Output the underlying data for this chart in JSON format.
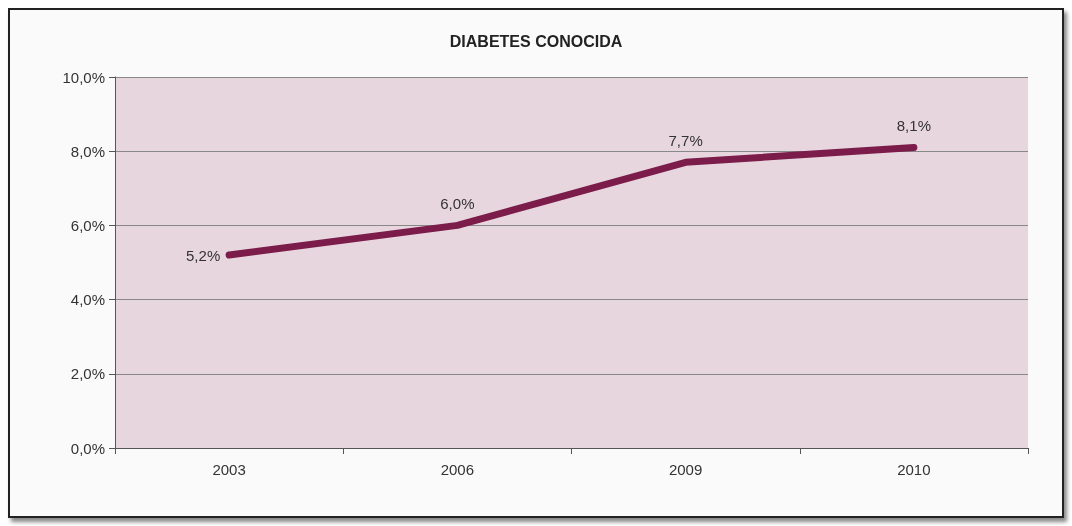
{
  "chart_data": {
    "type": "line",
    "title": "DIABETES CONOCIDA",
    "categories": [
      "2003",
      "2006",
      "2009",
      "2010"
    ],
    "series": [
      {
        "color": "#7b1c4b",
        "values": [
          5.2,
          6.0,
          7.7,
          8.1
        ],
        "value_labels": [
          "5,2%",
          "6,0%",
          "7,7%",
          "8,1%"
        ]
      }
    ],
    "ylim": [
      0,
      10
    ],
    "yticks": [
      {
        "value": 0,
        "label": "0,0%"
      },
      {
        "value": 2,
        "label": "2,0%"
      },
      {
        "value": 4,
        "label": "4,0%"
      },
      {
        "value": 6,
        "label": "6,0%"
      },
      {
        "value": 8,
        "label": "8,0%"
      },
      {
        "value": 10,
        "label": "10,0%"
      }
    ],
    "grid": "y",
    "marker": "none",
    "line_style": "solid"
  }
}
